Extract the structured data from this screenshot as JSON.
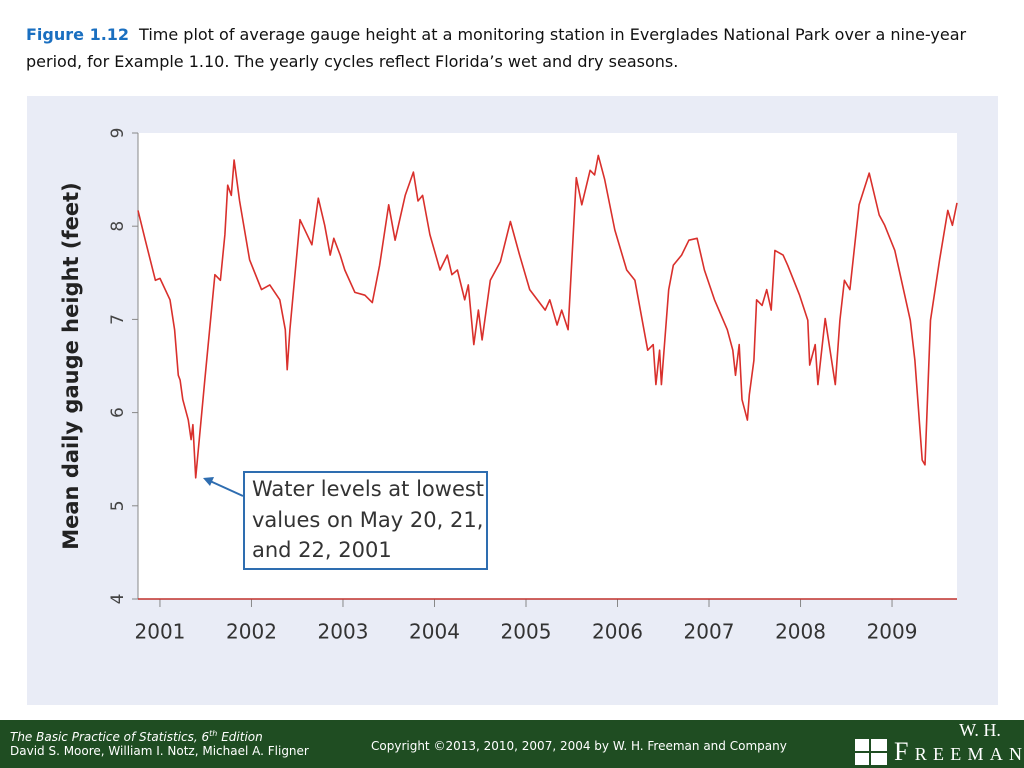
{
  "caption": {
    "label": "Figure 1.12",
    "text": "Time plot of average gauge height at a monitoring station in Everglades National Park over a nine-year period, for Example 1.10. The yearly cycles reflect Florida’s wet and dry seasons."
  },
  "chart_data": {
    "type": "line",
    "ylabel": "Mean daily gauge height (feet)",
    "annotation": [
      "Water levels at lowest",
      "values on May 20, 21,",
      "and 22, 2001"
    ],
    "x": [
      2000.76,
      2000.84,
      2000.95,
      2001.0,
      2001.11,
      2001.16,
      2001.2,
      2001.22,
      2001.25,
      2001.31,
      2001.34,
      2001.36,
      2001.39,
      2001.49,
      2001.6,
      2001.66,
      2001.71,
      2001.74,
      2001.78,
      2001.81,
      2001.87,
      2001.98,
      2002.11,
      2002.2,
      2002.31,
      2002.37,
      2002.39,
      2002.42,
      2002.53,
      2002.66,
      2002.73,
      2002.8,
      2002.86,
      2002.9,
      2002.97,
      2003.02,
      2003.13,
      2003.24,
      2003.32,
      2003.4,
      2003.5,
      2003.57,
      2003.68,
      2003.77,
      2003.82,
      2003.87,
      2003.95,
      2004.06,
      2004.14,
      2004.19,
      2004.25,
      2004.33,
      2004.37,
      2004.43,
      2004.48,
      2004.52,
      2004.61,
      2004.72,
      2004.83,
      2004.93,
      2005.04,
      2005.21,
      2005.26,
      2005.34,
      2005.39,
      2005.46,
      2005.55,
      2005.61,
      2005.7,
      2005.75,
      2005.79,
      2005.86,
      2005.97,
      2006.1,
      2006.19,
      2006.33,
      2006.39,
      2006.42,
      2006.46,
      2006.48,
      2006.56,
      2006.61,
      2006.7,
      2006.78,
      2006.87,
      2006.95,
      2007.06,
      2007.2,
      2007.26,
      2007.29,
      2007.33,
      2007.36,
      2007.42,
      2007.44,
      2007.49,
      2007.52,
      2007.58,
      2007.63,
      2007.68,
      2007.72,
      2007.81,
      2007.86,
      2007.99,
      2008.08,
      2008.1,
      2008.16,
      2008.19,
      2008.27,
      2008.38,
      2008.43,
      2008.48,
      2008.54,
      2008.64,
      2008.75,
      2008.86,
      2008.92,
      2009.03,
      2009.2,
      2009.25,
      2009.33,
      2009.36,
      2009.42,
      2009.52,
      2009.61,
      2009.66,
      2009.71
    ],
    "series": [
      {
        "color": "#d9302c",
        "values": [
          8.17,
          7.85,
          7.42,
          7.44,
          7.21,
          6.89,
          6.4,
          6.35,
          6.14,
          5.92,
          5.71,
          5.87,
          5.3,
          6.35,
          7.48,
          7.42,
          7.91,
          8.44,
          8.33,
          8.71,
          8.27,
          7.64,
          7.32,
          7.37,
          7.21,
          6.89,
          6.46,
          6.89,
          8.07,
          7.8,
          8.3,
          8.01,
          7.69,
          7.87,
          7.69,
          7.53,
          7.29,
          7.26,
          7.18,
          7.58,
          8.23,
          7.85,
          8.33,
          8.58,
          8.27,
          8.33,
          7.91,
          7.53,
          7.69,
          7.48,
          7.53,
          7.21,
          7.37,
          6.73,
          7.1,
          6.78,
          7.42,
          7.62,
          8.05,
          7.69,
          7.32,
          7.1,
          7.21,
          6.94,
          7.1,
          6.89,
          8.52,
          8.23,
          8.6,
          8.55,
          8.76,
          8.5,
          7.96,
          7.53,
          7.42,
          6.67,
          6.73,
          6.3,
          6.67,
          6.3,
          7.32,
          7.58,
          7.69,
          7.85,
          7.87,
          7.53,
          7.21,
          6.89,
          6.67,
          6.4,
          6.73,
          6.14,
          5.92,
          6.19,
          6.56,
          7.21,
          7.15,
          7.32,
          7.1,
          7.74,
          7.69,
          7.58,
          7.26,
          6.99,
          6.51,
          6.73,
          6.3,
          7.01,
          6.3,
          6.99,
          7.42,
          7.32,
          8.23,
          8.57,
          8.12,
          8.01,
          7.74,
          6.99,
          6.56,
          5.49,
          5.44,
          6.99,
          7.64,
          8.17,
          8.01,
          8.25
        ]
      }
    ],
    "xlim": [
      2000.76,
      2009.71
    ],
    "xticks": [
      2001,
      2002,
      2003,
      2004,
      2005,
      2006,
      2007,
      2008,
      2009
    ],
    "ylim": [
      4,
      9
    ],
    "yticks": [
      4,
      5,
      6,
      7,
      8,
      9
    ]
  },
  "footer": {
    "book_title": "The Basic Practice of Statistics, 6",
    "edition_suffix": "th",
    "edition": " Edition",
    "authors": "David S. Moore, William I. Notz, Michael A. Fligner",
    "copyright": "Copyright ©2013, 2010, 2007, 2004 by W. H. Freeman and Company",
    "logo_top": "W. H.",
    "logo_name": "Freeman"
  }
}
